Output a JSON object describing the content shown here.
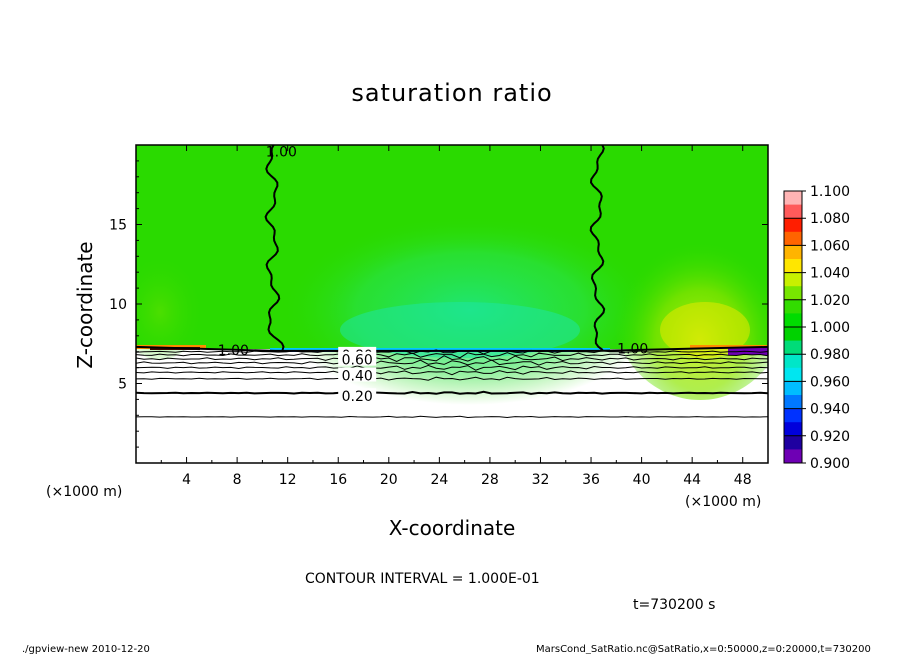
{
  "chart_data": {
    "type": "contour",
    "title": "saturation ratio",
    "xlabel": "X-coordinate",
    "ylabel": "Z-coordinate",
    "x_unit": "(×1000 m)",
    "y_unit": "(×1000 m)",
    "xlim": [
      0,
      50
    ],
    "ylim": [
      0,
      20
    ],
    "x_ticks": [
      4,
      8,
      12,
      16,
      20,
      24,
      28,
      32,
      36,
      40,
      44,
      48
    ],
    "y_ticks": [
      5,
      10,
      15
    ],
    "contour_interval_label": "CONTOUR INTERVAL = 1.000E-01",
    "time_label": "t=730200 s",
    "contour_labels": [
      "1.00",
      "0.80",
      "0.60",
      "0.40",
      "0.20",
      "1.00",
      "1.00"
    ],
    "contour_levels": [
      0.1,
      0.2,
      0.3,
      0.4,
      0.5,
      0.6,
      0.7,
      0.8,
      0.9,
      1.0
    ],
    "colorbar": {
      "labels": [
        "1.100",
        "1.080",
        "1.060",
        "1.040",
        "1.020",
        "1.000",
        "0.980",
        "0.960",
        "0.940",
        "0.920",
        "0.900"
      ],
      "colors": [
        "#ffb4b4",
        "#ff5a5a",
        "#ff1e00",
        "#ff6400",
        "#ffb400",
        "#ffe600",
        "#c8f000",
        "#78e600",
        "#32dc00",
        "#00dc00",
        "#00d200",
        "#00dc78",
        "#00e6c8",
        "#00e6f0",
        "#00beff",
        "#0078ff",
        "#0032ff",
        "#0000dc",
        "#1e00a0",
        "#6e00b4"
      ]
    },
    "field_summary": {
      "base_color": "#2ada00",
      "lower_region": "white (ratio below 0.9)",
      "cloud_base_z": 7
    }
  },
  "footer": {
    "left": "./gpview-new   2010-12-20",
    "right": "MarsCond_SatRatio.nc@SatRatio,x=0:50000,z=0:20000,t=730200"
  }
}
